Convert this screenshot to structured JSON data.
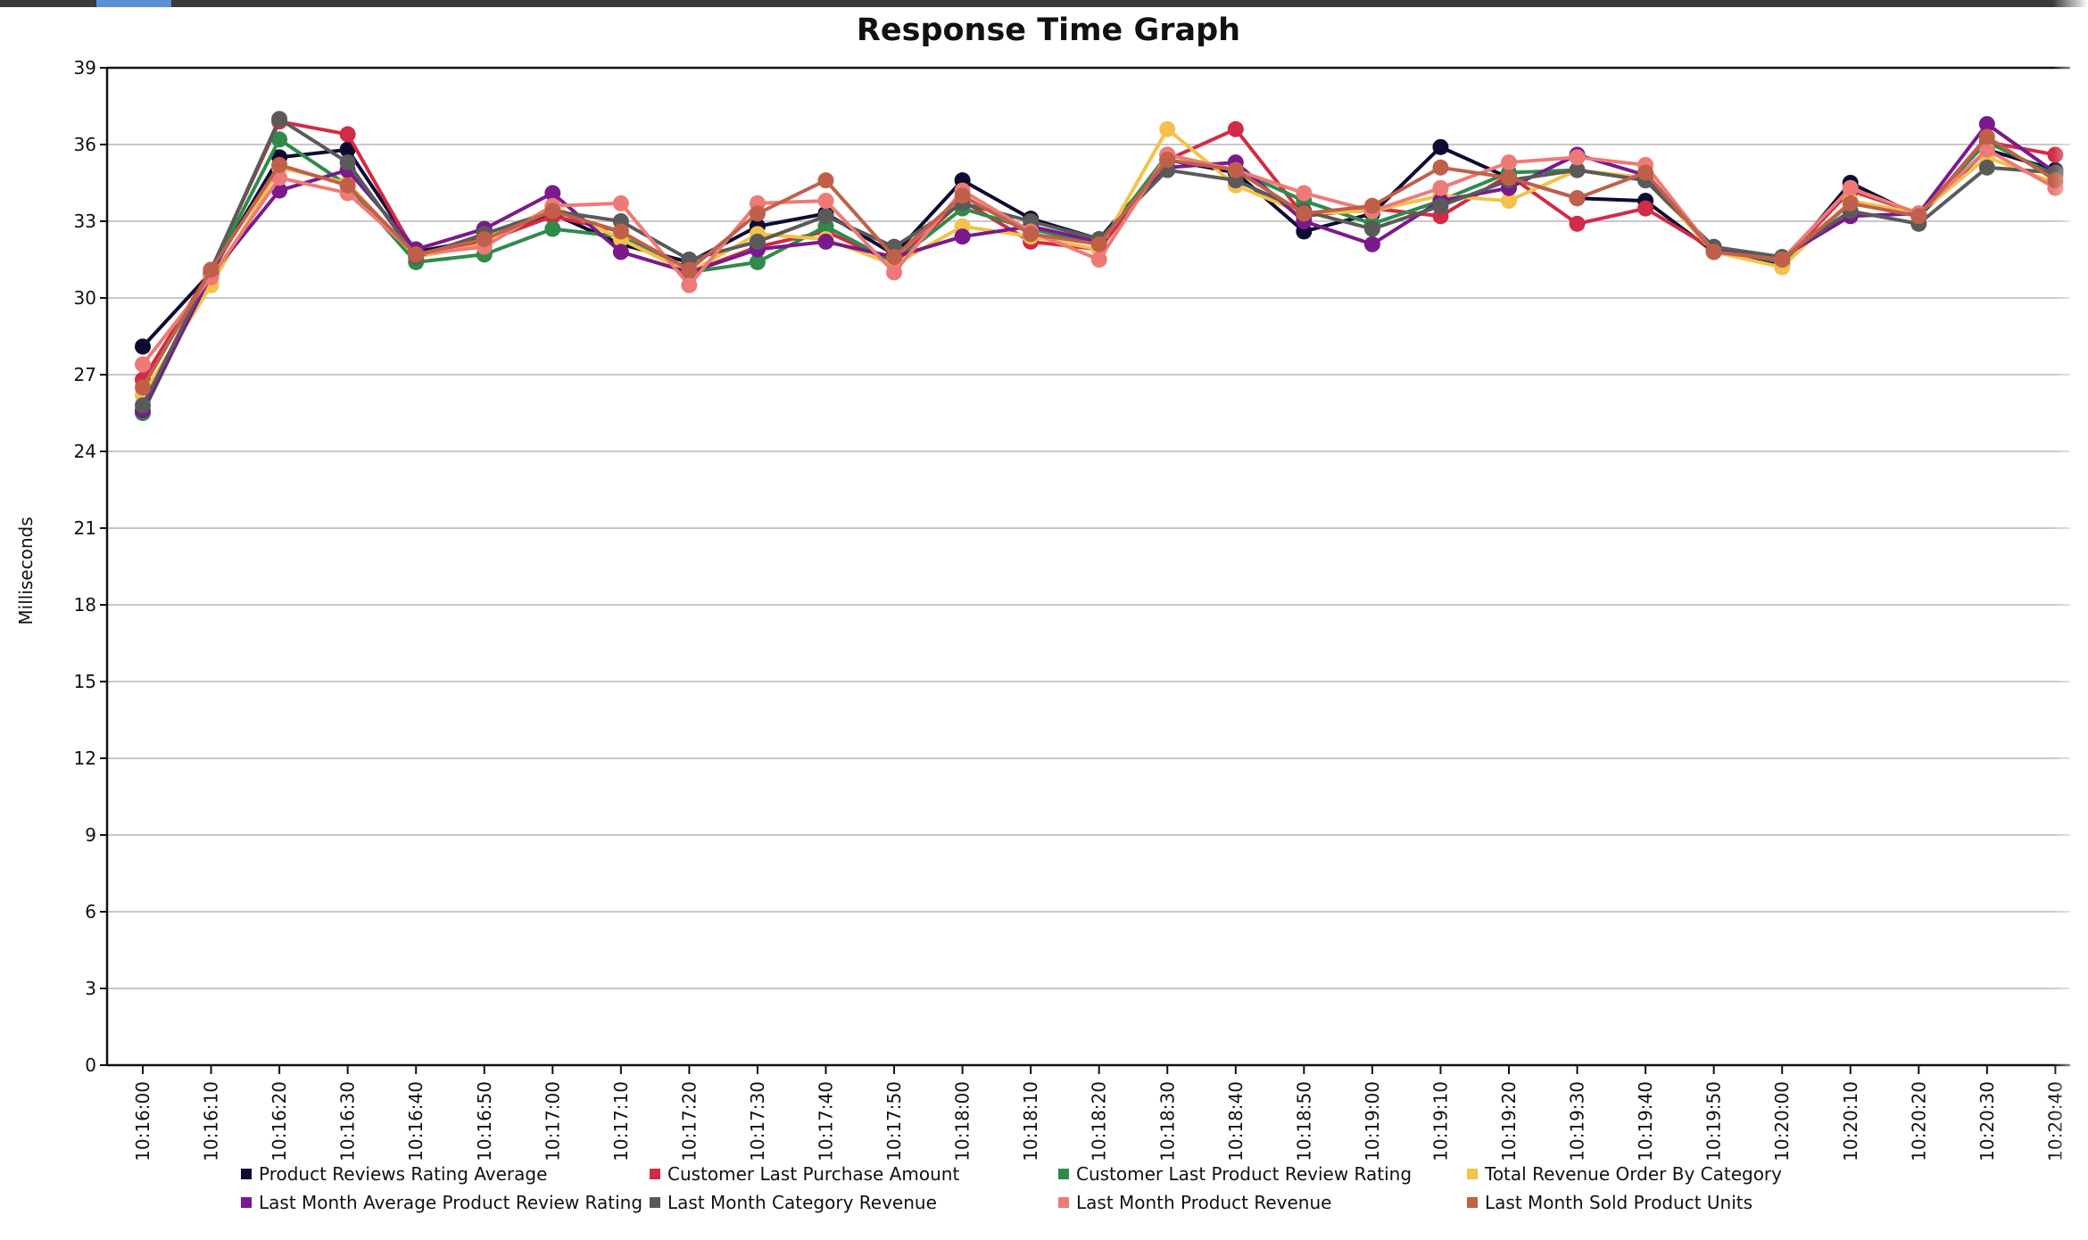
{
  "chart_data": {
    "type": "line",
    "title": "Response Time Graph",
    "xlabel": "",
    "ylabel": "Milliseconds",
    "ylim": [
      0,
      39
    ],
    "yticks": [
      0,
      3,
      6,
      9,
      12,
      15,
      18,
      21,
      24,
      27,
      30,
      33,
      36,
      39
    ],
    "grid": true,
    "legend_position": "bottom",
    "categories": [
      "10:16:00",
      "10:16:10",
      "10:16:20",
      "10:16:30",
      "10:16:40",
      "10:16:50",
      "10:17:00",
      "10:17:10",
      "10:17:20",
      "10:17:30",
      "10:17:40",
      "10:17:50",
      "10:18:00",
      "10:18:10",
      "10:18:20",
      "10:18:30",
      "10:18:40",
      "10:18:50",
      "10:19:00",
      "10:19:10",
      "10:19:20",
      "10:19:30",
      "10:19:40",
      "10:19:50",
      "10:20:00",
      "10:20:10",
      "10:20:20",
      "10:20:30",
      "10:20:40"
    ],
    "series": [
      {
        "name": "Product Reviews Rating Average",
        "color": "#0e0b33",
        "values": [
          28.1,
          31.0,
          35.5,
          35.8,
          31.8,
          32.3,
          33.3,
          32.1,
          31.4,
          32.8,
          33.3,
          31.7,
          34.6,
          33.1,
          32.3,
          35.4,
          34.9,
          32.6,
          33.3,
          35.9,
          34.7,
          33.9,
          33.8,
          31.8,
          31.3,
          34.5,
          33.2,
          35.8,
          35.0
        ]
      },
      {
        "name": "Customer Last Purchase Amount",
        "color": "#d12b45",
        "values": [
          26.8,
          31.1,
          36.9,
          36.4,
          31.7,
          32.2,
          33.2,
          32.6,
          31.0,
          32.0,
          32.6,
          31.4,
          33.8,
          32.2,
          31.9,
          35.4,
          36.6,
          33.2,
          33.5,
          33.2,
          34.8,
          32.9,
          33.5,
          31.9,
          31.4,
          34.2,
          33.3,
          36.1,
          35.6
        ]
      },
      {
        "name": "Customer Last Product Review Rating",
        "color": "#2e8b4a",
        "values": [
          25.5,
          31.0,
          36.2,
          34.4,
          31.4,
          31.7,
          32.7,
          32.4,
          31.0,
          31.4,
          32.8,
          31.4,
          33.5,
          32.7,
          32.1,
          35.6,
          35.0,
          33.8,
          32.9,
          33.8,
          34.9,
          35.0,
          34.6,
          31.9,
          31.4,
          33.7,
          33.3,
          36.1,
          34.8
        ]
      },
      {
        "name": "Total Revenue Order By Category",
        "color": "#f2c24a",
        "values": [
          26.2,
          30.5,
          35.1,
          34.5,
          31.6,
          32.1,
          33.6,
          32.3,
          31.0,
          32.5,
          32.3,
          31.3,
          32.8,
          32.4,
          31.9,
          36.6,
          34.4,
          33.3,
          33.4,
          34.0,
          33.8,
          35.0,
          34.7,
          31.8,
          31.2,
          33.8,
          33.3,
          35.5,
          34.5
        ]
      },
      {
        "name": "Last Month Average Product Review Rating",
        "color": "#7a1a8c",
        "values": [
          25.6,
          30.9,
          34.2,
          35.0,
          31.9,
          32.7,
          34.1,
          31.8,
          31.0,
          31.9,
          32.2,
          31.6,
          32.4,
          32.8,
          32.2,
          35.1,
          35.3,
          33.0,
          32.1,
          33.8,
          34.3,
          35.6,
          34.8,
          31.9,
          31.6,
          33.2,
          33.3,
          36.8,
          34.9
        ]
      },
      {
        "name": "Last Month Category Revenue",
        "color": "#5a5a5a",
        "values": [
          25.8,
          31.1,
          37.0,
          35.3,
          31.6,
          32.5,
          33.4,
          33.0,
          31.5,
          32.2,
          33.2,
          32.0,
          33.7,
          33.0,
          32.3,
          35.0,
          34.6,
          33.4,
          32.7,
          33.6,
          34.6,
          35.0,
          34.6,
          32.0,
          31.6,
          33.4,
          32.9,
          35.1,
          34.9
        ]
      },
      {
        "name": "Last Month Product Revenue",
        "color": "#ee7a77",
        "values": [
          27.4,
          30.8,
          34.7,
          34.1,
          31.7,
          32.0,
          33.6,
          33.7,
          30.5,
          33.7,
          33.8,
          31.0,
          34.2,
          32.6,
          31.5,
          35.6,
          35.0,
          34.1,
          33.4,
          34.3,
          35.3,
          35.5,
          35.2,
          31.8,
          31.5,
          34.3,
          33.3,
          35.8,
          34.3
        ]
      },
      {
        "name": "Last Month Sold Product Units",
        "color": "#c0604a",
        "values": [
          26.5,
          31.1,
          35.2,
          34.4,
          31.7,
          32.3,
          33.4,
          32.6,
          31.1,
          33.3,
          34.6,
          31.6,
          34.0,
          32.5,
          32.1,
          35.4,
          35.0,
          33.3,
          33.6,
          35.1,
          34.7,
          33.9,
          34.9,
          31.8,
          31.5,
          33.7,
          33.2,
          36.3,
          34.6
        ]
      }
    ]
  }
}
